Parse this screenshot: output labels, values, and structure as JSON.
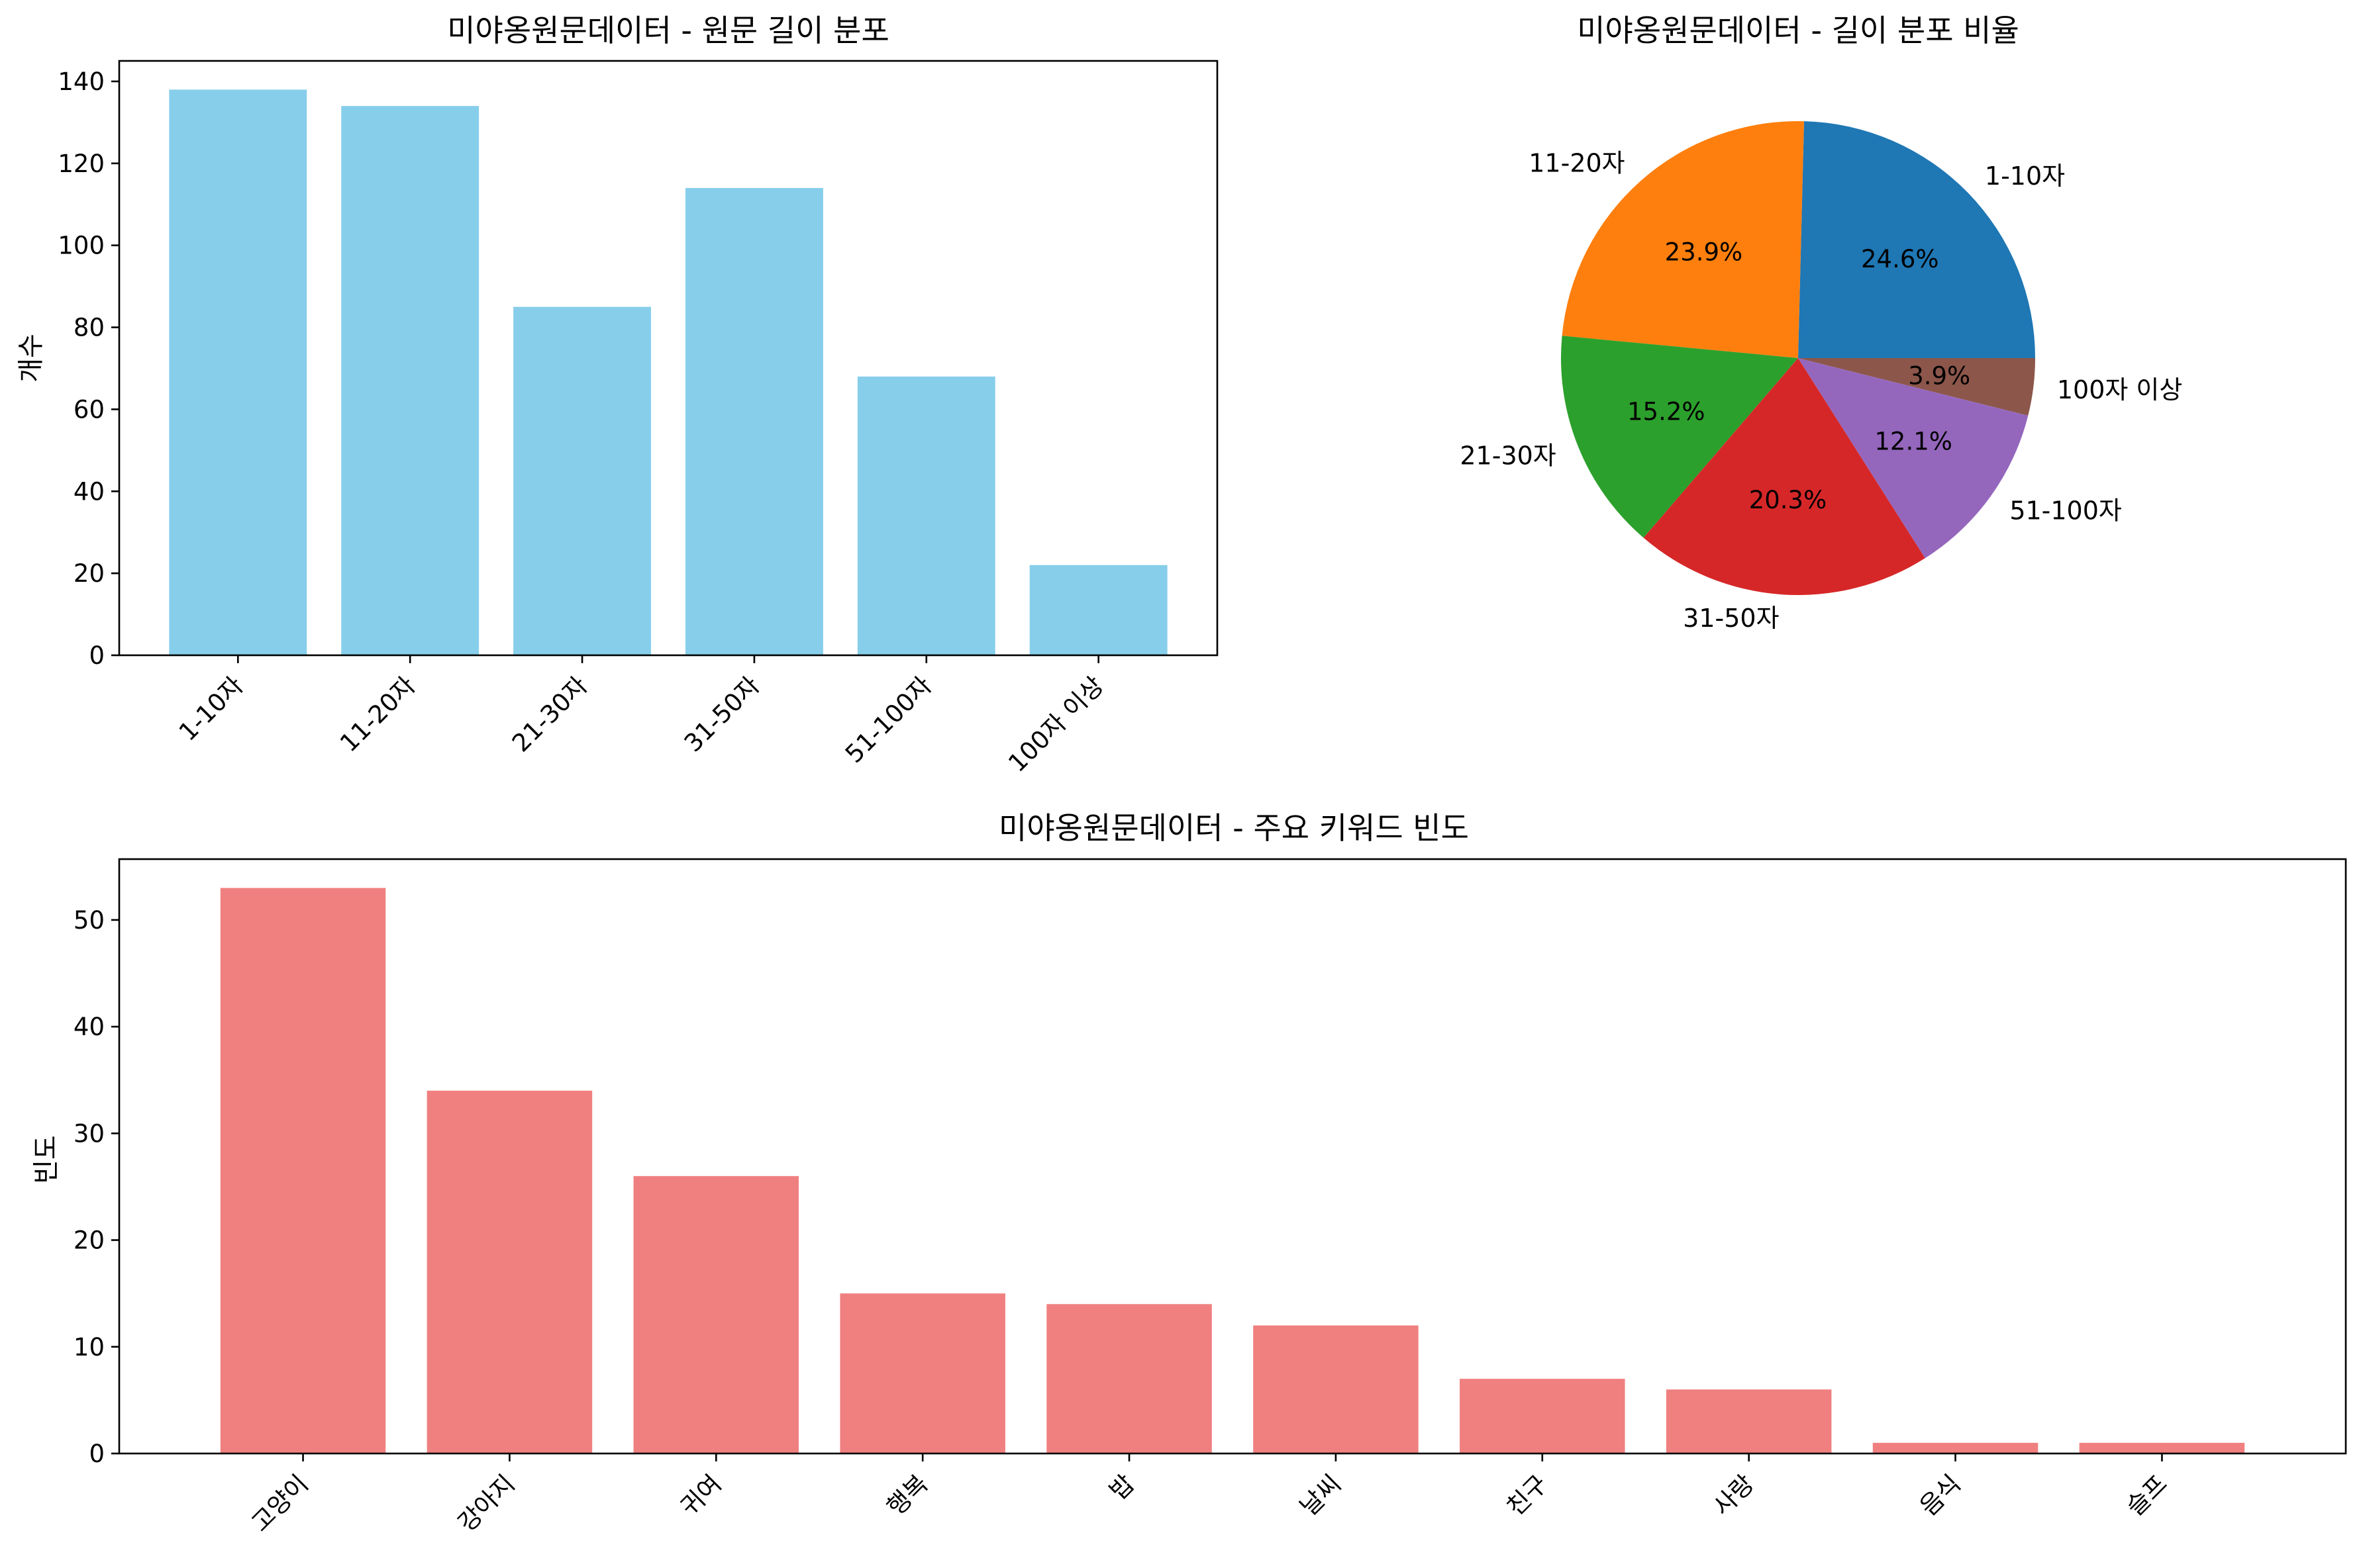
{
  "chart_data": [
    {
      "type": "bar",
      "title": "미야옹원문데이터 - 원문 길이 분포",
      "xlabel": "",
      "ylabel": "개수",
      "categories": [
        "1-10자",
        "11-20자",
        "21-30자",
        "31-50자",
        "51-100자",
        "100자 이상"
      ],
      "values": [
        138,
        134,
        85,
        114,
        68,
        22
      ],
      "ylim": [
        0,
        145
      ],
      "yticks": [
        "0",
        "20",
        "40",
        "60",
        "80",
        "100",
        "120",
        "140"
      ],
      "color": "#87ceeb",
      "grid": false
    },
    {
      "type": "pie",
      "title": "미야옹원문데이터 - 길이 분포 비율",
      "labels": [
        "1-10자",
        "11-20자",
        "21-30자",
        "31-50자",
        "51-100자",
        "100자 이상"
      ],
      "values": [
        24.6,
        23.9,
        15.2,
        20.3,
        12.1,
        3.9
      ],
      "pct_labels": [
        "24.6%",
        "23.9%",
        "15.2%",
        "20.3%",
        "12.1%",
        "3.9%"
      ],
      "colors": [
        "#1f77b4",
        "#ff7f0e",
        "#2ca02c",
        "#d62728",
        "#9467bd",
        "#8c564b"
      ]
    },
    {
      "type": "bar",
      "title": "미야옹원문데이터 - 주요 키워드 빈도",
      "xlabel": "",
      "ylabel": "빈도",
      "categories": [
        "고양이",
        "강아지",
        "귀여",
        "행복",
        "밥",
        "날씨",
        "친구",
        "사랑",
        "음식",
        "슬프"
      ],
      "values": [
        53,
        34,
        26,
        15,
        14,
        12,
        7,
        6,
        1,
        1
      ],
      "ylim": [
        0,
        55.7
      ],
      "yticks": [
        "0",
        "10",
        "20",
        "30",
        "40",
        "50"
      ],
      "color": "#f08080",
      "grid": false
    }
  ]
}
